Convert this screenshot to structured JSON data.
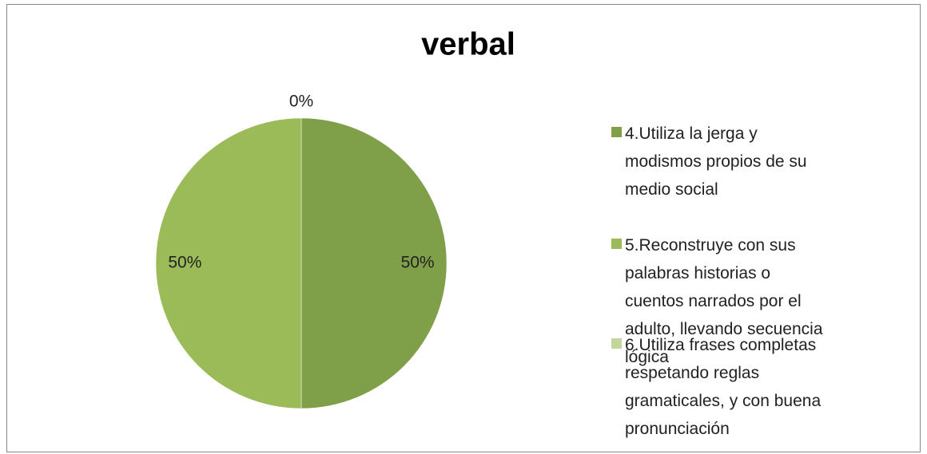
{
  "chart_data": {
    "type": "pie",
    "title": "verbal",
    "categories": [
      "4.Utiliza la jerga y modismos propios de su medio social",
      "5.Reconstruye con sus palabras historias o cuentos narrados por el adulto, llevando secuencia lógica",
      "6.Utiliza frases completas respetando reglas gramaticales, y con buena pronunciación"
    ],
    "values": [
      50,
      50,
      0
    ],
    "value_labels": [
      "50%",
      "50%",
      "0%"
    ],
    "colors": [
      "#7f9f48",
      "#9bbb59",
      "#c3d69b"
    ],
    "legend": "right"
  }
}
